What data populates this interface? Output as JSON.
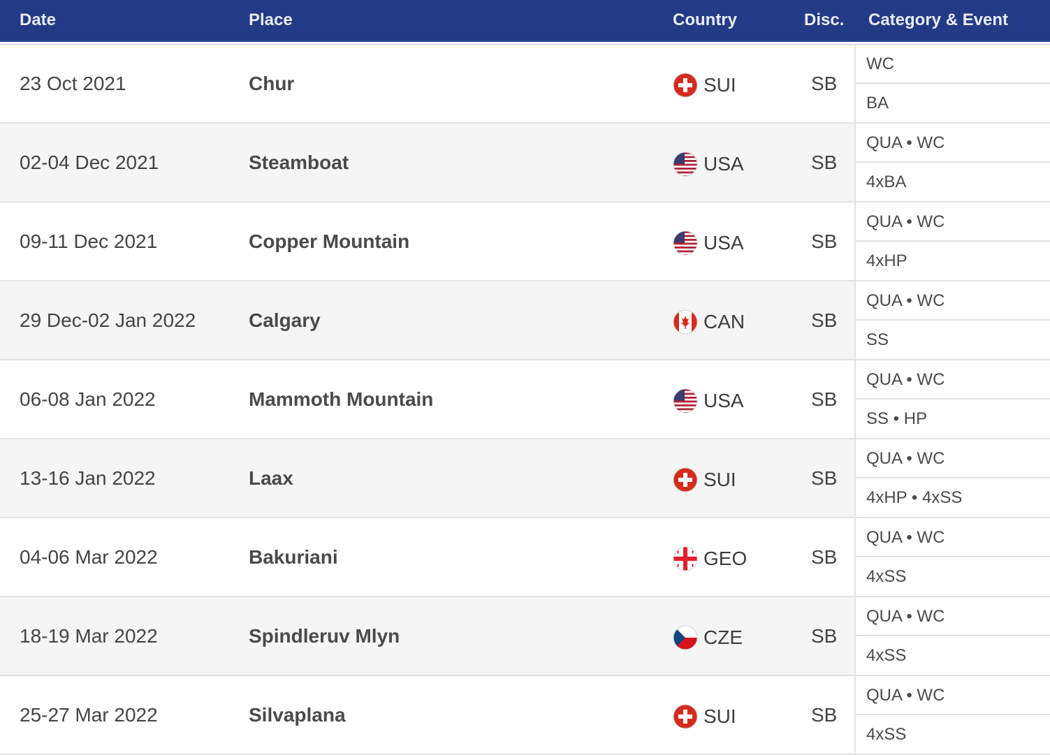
{
  "header": {
    "date": "Date",
    "place": "Place",
    "country": "Country",
    "disc": "Disc.",
    "category": "Category & Event"
  },
  "colors": {
    "header_bg": "#233a86",
    "row_alt_bg": "#f5f5f5"
  },
  "rows": [
    {
      "date": "23 Oct 2021",
      "place": "Chur",
      "flag": "switzerland-flag-icon",
      "country": "SUI",
      "disc": "SB",
      "category": "WC",
      "event": "BA"
    },
    {
      "date": "02-04 Dec 2021",
      "place": "Steamboat",
      "flag": "usa-flag-icon",
      "country": "USA",
      "disc": "SB",
      "category": "QUA • WC",
      "event": "4xBA"
    },
    {
      "date": "09-11 Dec 2021",
      "place": "Copper Mountain",
      "flag": "usa-flag-icon",
      "country": "USA",
      "disc": "SB",
      "category": "QUA • WC",
      "event": "4xHP"
    },
    {
      "date": "29 Dec-02 Jan 2022",
      "place": "Calgary",
      "flag": "canada-flag-icon",
      "country": "CAN",
      "disc": "SB",
      "category": "QUA • WC",
      "event": "SS"
    },
    {
      "date": "06-08 Jan 2022",
      "place": "Mammoth Mountain",
      "flag": "usa-flag-icon",
      "country": "USA",
      "disc": "SB",
      "category": "QUA • WC",
      "event": "SS • HP"
    },
    {
      "date": "13-16 Jan 2022",
      "place": "Laax",
      "flag": "switzerland-flag-icon",
      "country": "SUI",
      "disc": "SB",
      "category": "QUA • WC",
      "event": "4xHP • 4xSS"
    },
    {
      "date": "04-06 Mar 2022",
      "place": "Bakuriani",
      "flag": "georgia-flag-icon",
      "country": "GEO",
      "disc": "SB",
      "category": "QUA • WC",
      "event": "4xSS"
    },
    {
      "date": "18-19 Mar 2022",
      "place": "Spindleruv Mlyn",
      "flag": "czech-flag-icon",
      "country": "CZE",
      "disc": "SB",
      "category": "QUA • WC",
      "event": "4xSS"
    },
    {
      "date": "25-27 Mar 2022",
      "place": "Silvaplana",
      "flag": "switzerland-flag-icon",
      "country": "SUI",
      "disc": "SB",
      "category": "QUA • WC",
      "event": "4xSS"
    }
  ]
}
